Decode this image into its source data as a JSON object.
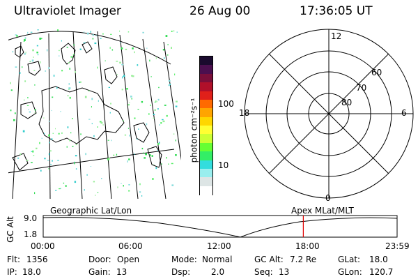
{
  "header": {
    "title": "Ultraviolet Imager",
    "date": "26 Aug 00",
    "time": "17:36:05 UT"
  },
  "colorbar": {
    "unit_label": "photon cm⁻²s⁻¹",
    "tick_labels": [
      "100",
      "10"
    ],
    "colors": [
      "#1a0a2e",
      "#4b0f4f",
      "#7a0f3a",
      "#b0102a",
      "#e0201a",
      "#ff6a00",
      "#ffa500",
      "#ffd700",
      "#ffff33",
      "#ccff33",
      "#66ff33",
      "#33ee66",
      "#33dddd",
      "#99eeee",
      "#dde5e5",
      "#ffffff"
    ]
  },
  "polar": {
    "labels": {
      "top": "12",
      "left": "18",
      "right": "6",
      "bottom": "0"
    },
    "ring_labels": [
      "60",
      "70",
      "80"
    ]
  },
  "altitude": {
    "left_label": "Geographic Lat/Lon",
    "right_label": "Apex MLat/MLT",
    "axis_label": "GC Alt",
    "y_ticks": [
      "9.0",
      "1.8"
    ],
    "x_ticks": [
      "00:00",
      "06:00",
      "12:00",
      "18:00",
      "23:59"
    ],
    "current_time_fraction": 0.735
  },
  "status": {
    "flt_label": "Flt:",
    "flt": "1356",
    "ip_label": "IP:",
    "ip": "18.0",
    "door_label": "Door:",
    "door": "Open",
    "gain_label": "Gain:",
    "gain": "13",
    "mode_label": "Mode:",
    "mode": "Normal",
    "dsp_label": "Dsp:",
    "dsp": "2.0",
    "gcalt_label": "GC Alt:",
    "gcalt": "7.2 Re",
    "seq_label": "Seq:",
    "seq": "13",
    "glat_label": "GLat:",
    "glat": "18.0",
    "glon_label": "GLon:",
    "glon": "120.7"
  }
}
